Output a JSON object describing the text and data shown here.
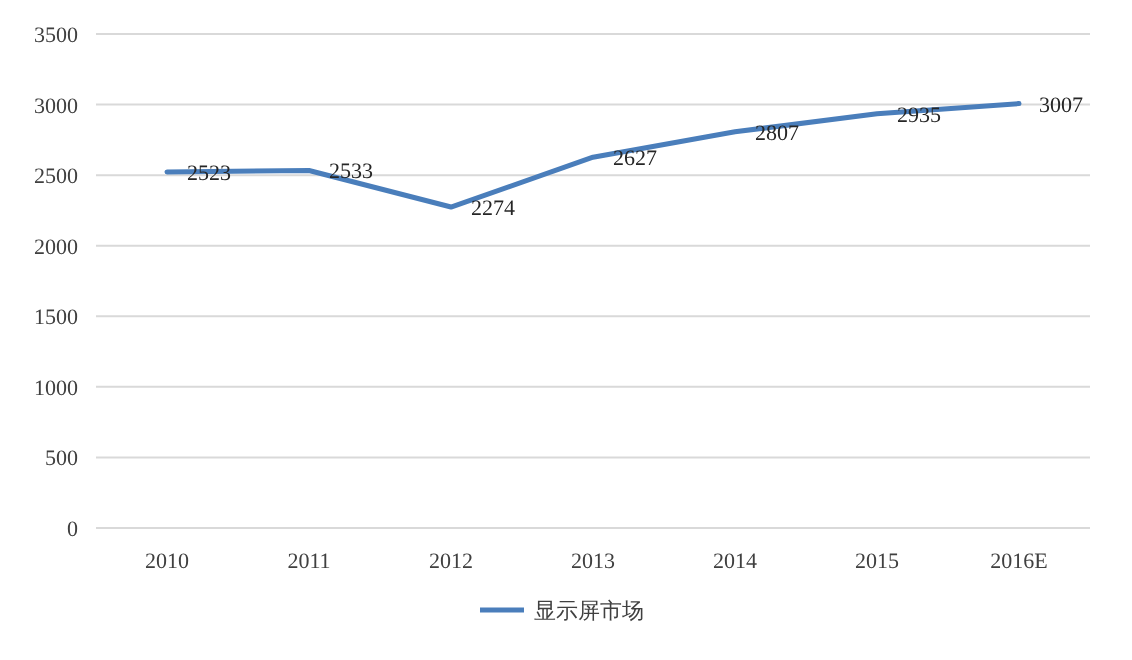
{
  "chart_data": {
    "type": "line",
    "categories": [
      "2010",
      "2011",
      "2012",
      "2013",
      "2014",
      "2015",
      "2016E"
    ],
    "series": [
      {
        "name": "显示屏市场",
        "color": "#4a7ebb",
        "values": [
          2523,
          2533,
          2274,
          2627,
          2807,
          2935,
          3007
        ]
      }
    ],
    "ylim": [
      0,
      3500
    ],
    "yticks": [
      0,
      500,
      1000,
      1500,
      2000,
      2500,
      3000,
      3500
    ],
    "grid": "y",
    "legend": "bottom",
    "data_labels": true,
    "line_style": "solid"
  }
}
